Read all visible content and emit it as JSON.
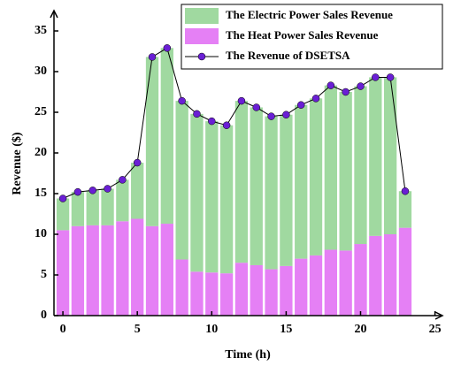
{
  "chart_data": {
    "type": "bar",
    "stacked": true,
    "xlabel": "Time (h)",
    "ylabel": "Revenue ($)",
    "x": [
      0,
      1,
      2,
      3,
      4,
      5,
      6,
      7,
      8,
      9,
      10,
      11,
      12,
      13,
      14,
      15,
      16,
      17,
      18,
      19,
      20,
      21,
      22,
      23
    ],
    "series": [
      {
        "name": "The Electric Power Sales Revenue",
        "type": "bar",
        "color": "#a0d9a0",
        "values": [
          3.9,
          4.2,
          4.3,
          4.5,
          5.1,
          6.9,
          20.8,
          21.6,
          19.5,
          19.4,
          18.6,
          18.2,
          19.9,
          19.4,
          18.8,
          18.6,
          18.9,
          19.3,
          20.2,
          19.5,
          19.4,
          19.5,
          19.3,
          4.5
        ]
      },
      {
        "name": "The Heat  Power Sales Revenue",
        "type": "bar",
        "color": "#e580f5",
        "values": [
          10.5,
          11.0,
          11.1,
          11.1,
          11.6,
          11.9,
          11.0,
          11.3,
          6.9,
          5.4,
          5.3,
          5.2,
          6.5,
          6.2,
          5.7,
          6.1,
          7.0,
          7.4,
          8.1,
          8.0,
          8.8,
          9.8,
          10.0,
          10.8
        ]
      },
      {
        "name": "The Revenue of DSETSA",
        "type": "line",
        "color": "#000000",
        "marker_color": "#6a1fd4",
        "values": [
          14.4,
          15.2,
          15.4,
          15.6,
          16.7,
          18.8,
          31.8,
          32.9,
          26.4,
          24.8,
          23.9,
          23.4,
          26.4,
          25.6,
          24.5,
          24.7,
          25.9,
          26.7,
          28.3,
          27.5,
          28.2,
          29.3,
          29.3,
          15.3
        ]
      }
    ],
    "xlim": [
      -0.6,
      25.5
    ],
    "ylim": [
      0,
      37.5
    ],
    "xticks": [
      0,
      5,
      10,
      15,
      20,
      25
    ],
    "yticks": [
      0,
      5,
      10,
      15,
      20,
      25,
      30,
      35
    ],
    "legend": "upper right"
  }
}
